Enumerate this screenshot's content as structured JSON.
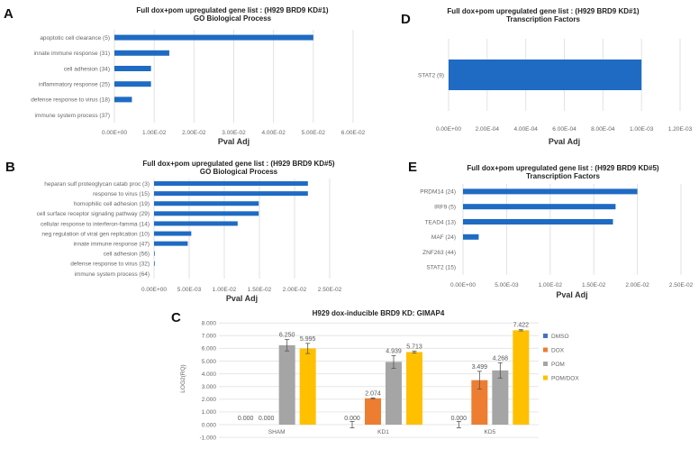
{
  "chart_data": [
    {
      "panel": "A",
      "type": "bar",
      "orientation": "horizontal",
      "title": [
        "Full dox+pom upregulated gene list : (H929  BRD9  KD#1)",
        "GO Biological Process"
      ],
      "xlabel": "Pval Adj",
      "xlim": [
        0,
        0.06
      ],
      "xticks": [
        "0.00E+00",
        "1.00E-02",
        "2.00E-02",
        "3.00E-02",
        "4.00E-02",
        "5.00E-02",
        "6.00E-02"
      ],
      "grid": true,
      "color": "#1f6bc4",
      "categories": [
        "apoptotic cell clearance (5)",
        "innate immune response (31)",
        "cell adhesion (34)",
        "inflammatory response (25)",
        "defense response to virus (18)",
        "immune system process (37)"
      ],
      "values": [
        0.05,
        0.0138,
        0.0092,
        0.0092,
        0.0044,
        0
      ]
    },
    {
      "panel": "B",
      "type": "bar",
      "orientation": "horizontal",
      "title": [
        "Full dox+pom upregulated gene list : (H929  BRD9  KD#5)",
        "GO Biological Process"
      ],
      "xlabel": "Pval Adj",
      "xlim": [
        0,
        0.025
      ],
      "xticks": [
        "0.00E+00",
        "5.00E-03",
        "1.00E-02",
        "1.50E-02",
        "2.00E-02",
        "2.50E-02"
      ],
      "grid": true,
      "color": "#1f6bc4",
      "categories": [
        "heparan sulf proteoglycan catab proc (3)",
        "response to virus (15)",
        "homophilic cell adhesion (19)",
        "cell surface receptor signaling pathway (29)",
        "cellular response to interferon-famma (14)",
        "neg regulation of viral gen replication (10)",
        "innate immune response (47)",
        "cell adhesion (56)",
        "defense response to virus (32)",
        "immune system process (64)"
      ],
      "values": [
        0.0219,
        0.0219,
        0.0149,
        0.0149,
        0.0119,
        0.0053,
        0.0048,
        0.0001,
        0.0001,
        0
      ]
    },
    {
      "panel": "D",
      "type": "bar",
      "orientation": "horizontal",
      "title": [
        "Full dox+pom upregulated gene list : (H929  BRD9  KD#1)",
        "Transcription  Factors"
      ],
      "xlabel": "Pval Adj",
      "xlim": [
        0,
        0.0012
      ],
      "xticks": [
        "0.00E+00",
        "2.00E-04",
        "4.00E-04",
        "6.00E-04",
        "8.00E-04",
        "1.00E-03",
        "1.20E-03"
      ],
      "grid": true,
      "color": "#1f6bc4",
      "categories": [
        "STAT2 (9)"
      ],
      "values": [
        0.001
      ]
    },
    {
      "panel": "E",
      "type": "bar",
      "orientation": "horizontal",
      "title": [
        "Full dox+pom upregulated gene list : (H929  BRD9  KD#5)",
        "Transcription  Factors"
      ],
      "xlabel": "Pval Adj",
      "xlim": [
        0,
        0.025
      ],
      "xticks": [
        "0.00E+00",
        "5.00E-03",
        "1.00E-02",
        "1.50E-02",
        "2.00E-02",
        "2.50E-02"
      ],
      "grid": true,
      "color": "#1f6bc4",
      "categories": [
        "PRDM14 (24)",
        "IRF9 (5)",
        "TEAD4 (13)",
        "MAF (24)",
        "ZNF263 (44)",
        "STAT2 (15)"
      ],
      "values": [
        0.02,
        0.0175,
        0.0172,
        0.0018,
        0,
        0
      ]
    },
    {
      "panel": "C",
      "type": "bar",
      "orientation": "vertical",
      "title": [
        "H929  dox-inducible BRD9  KD:  GIMAP4"
      ],
      "ylabel": "LOG2(RQ)",
      "ylim": [
        -1,
        8
      ],
      "yticks": [
        "-1.000",
        "0.000",
        "1.000",
        "2.000",
        "3.000",
        "4.000",
        "5.000",
        "6.000",
        "7.000",
        "8.000"
      ],
      "grid": true,
      "legend": "right",
      "categories": [
        "SHAM",
        "KD1",
        "KD5"
      ],
      "series": [
        {
          "name": "DMSO",
          "color": "#4472c4",
          "values": [
            0,
            0,
            0
          ],
          "labels": [
            "0.000",
            "0.000",
            "0.000"
          ],
          "errors": [
            0,
            0.25,
            0.25
          ]
        },
        {
          "name": "DOX",
          "color": "#ed7d31",
          "values": [
            0,
            2.074,
            3.499
          ],
          "labels": [
            "0.000",
            "2.074",
            "3.499"
          ],
          "errors": [
            0,
            0.03,
            0.7
          ]
        },
        {
          "name": "POM",
          "color": "#a5a5a5",
          "values": [
            6.25,
            4.939,
            4.268
          ],
          "labels": [
            "6.250",
            "4.939",
            "4.268"
          ],
          "errors": [
            0.45,
            0.5,
            0.6
          ]
        },
        {
          "name": "POM/DOX",
          "color": "#ffc000",
          "values": [
            5.995,
            5.713,
            7.422
          ],
          "labels": [
            "5.995",
            "5.713",
            "7.422"
          ],
          "errors": [
            0.4,
            0.08,
            0.05
          ]
        }
      ]
    }
  ]
}
